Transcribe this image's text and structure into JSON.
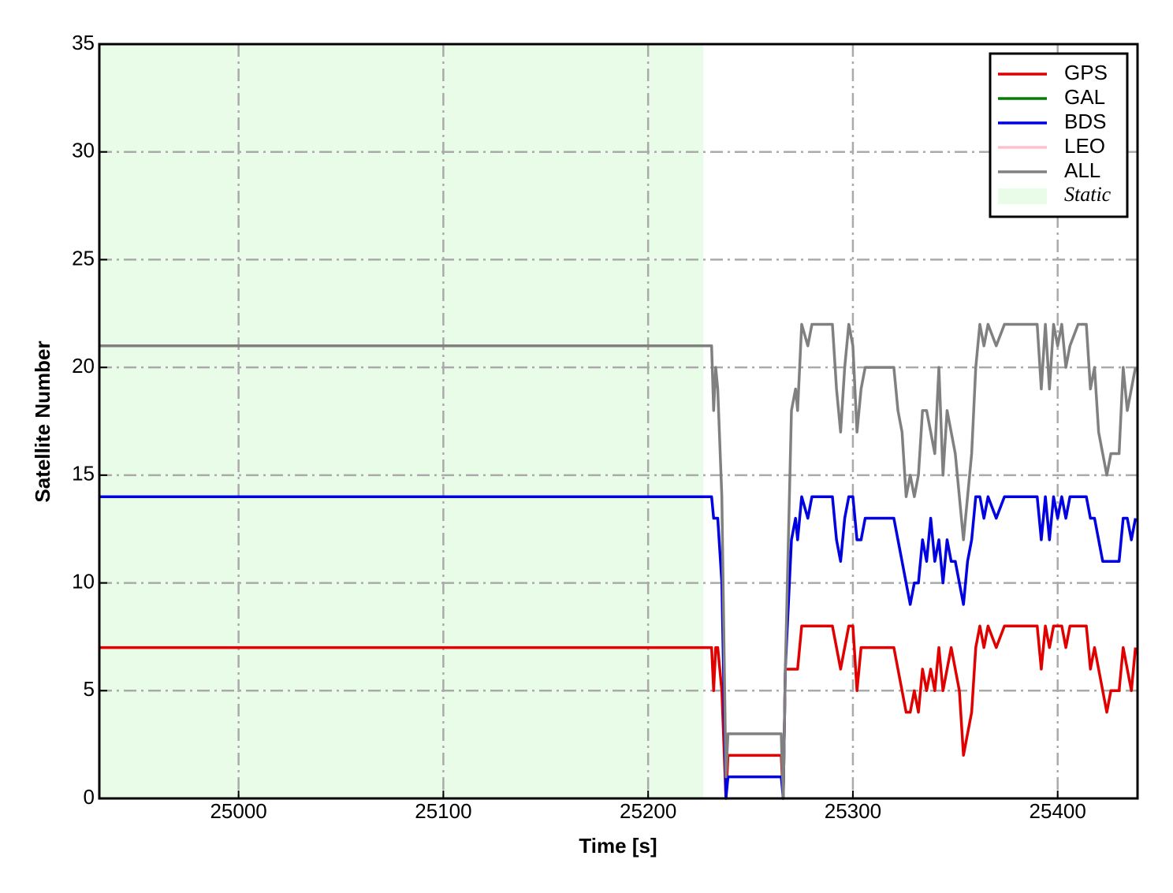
{
  "chart_data": {
    "type": "line",
    "xlabel": "Time [s]",
    "ylabel": "Satellite Number",
    "x": [
      24932,
      25231,
      25232,
      25233,
      25234,
      25236,
      25238,
      25239,
      25265,
      25266,
      25267,
      25270,
      25272,
      25273,
      25275,
      25278,
      25280,
      25290,
      25292,
      25294,
      25296,
      25298,
      25300,
      25302,
      25304,
      25306,
      25320,
      25322,
      25324,
      25326,
      25328,
      25330,
      25332,
      25334,
      25336,
      25338,
      25340,
      25342,
      25344,
      25346,
      25348,
      25350,
      25352,
      25354,
      25356,
      25358,
      25360,
      25362,
      25364,
      25366,
      25370,
      25374,
      25390,
      25392,
      25394,
      25396,
      25398,
      25400,
      25402,
      25404,
      25406,
      25410,
      25414,
      25416,
      25418,
      25420,
      25422,
      25424,
      25426,
      25430,
      25432,
      25434,
      25436,
      25438
    ],
    "series": [
      {
        "name": "GPS",
        "color": "#e00000",
        "values": [
          7,
          7,
          5,
          7,
          7,
          5,
          0,
          2,
          2,
          0,
          6,
          6,
          6,
          6,
          8,
          8,
          8,
          8,
          7,
          6,
          7,
          8,
          8,
          5,
          7,
          7,
          7,
          6,
          5,
          4,
          4,
          5,
          4,
          6,
          5,
          6,
          5,
          7,
          5,
          6,
          7,
          6,
          5,
          2,
          3,
          4,
          7,
          8,
          7,
          8,
          7,
          8,
          8,
          6,
          8,
          7,
          8,
          8,
          8,
          7,
          8,
          8,
          8,
          6,
          7,
          6,
          5,
          4,
          5,
          5,
          7,
          6,
          5,
          7
        ]
      },
      {
        "name": "GAL",
        "color": "#007f00",
        "values": [
          null,
          null,
          null,
          null,
          null,
          null,
          null,
          null,
          null,
          null,
          null,
          null,
          null,
          null,
          null,
          null,
          null,
          null,
          null,
          null,
          null,
          null,
          null,
          null,
          null,
          null,
          null,
          null,
          null,
          null,
          null,
          null,
          null,
          null,
          null,
          null,
          null,
          null,
          null,
          null,
          null,
          null,
          null,
          null,
          null,
          null,
          null,
          null,
          null,
          null,
          null,
          null,
          null,
          null,
          null,
          null,
          null,
          null,
          null,
          null,
          null,
          null,
          null,
          null,
          null,
          null,
          null,
          null,
          null,
          null,
          null,
          null,
          null,
          null
        ]
      },
      {
        "name": "BDS",
        "color": "#0000e0",
        "values": [
          14,
          14,
          13,
          13,
          13,
          10,
          0,
          1,
          1,
          0,
          6,
          12,
          13,
          12,
          14,
          13,
          14,
          14,
          12,
          11,
          13,
          14,
          14,
          12,
          12,
          13,
          13,
          12,
          11,
          10,
          9,
          10,
          10,
          12,
          11,
          13,
          11,
          12,
          10,
          12,
          11,
          11,
          10,
          9,
          11,
          12,
          14,
          14,
          13,
          14,
          13,
          14,
          14,
          12,
          14,
          12,
          14,
          13,
          14,
          13,
          14,
          14,
          14,
          13,
          13,
          12,
          11,
          11,
          11,
          11,
          13,
          13,
          12,
          13
        ]
      },
      {
        "name": "LEO",
        "color": "#ffc0cb",
        "values": [
          null,
          null,
          null,
          null,
          null,
          null,
          null,
          null,
          null,
          null,
          null,
          null,
          null,
          null,
          null,
          null,
          null,
          null,
          null,
          null,
          null,
          null,
          null,
          null,
          null,
          null,
          null,
          null,
          null,
          null,
          null,
          null,
          null,
          null,
          null,
          null,
          null,
          null,
          null,
          null,
          null,
          null,
          null,
          null,
          null,
          null,
          null,
          null,
          null,
          null,
          null,
          null,
          null,
          null,
          null,
          null,
          null,
          null,
          null,
          null,
          null,
          null,
          null,
          null,
          null,
          null,
          null,
          null,
          null,
          null,
          null,
          null,
          null,
          null
        ]
      },
      {
        "name": "ALL",
        "color": "#808080",
        "values": [
          21,
          21,
          18,
          20,
          19,
          14,
          1,
          3,
          3,
          0,
          6,
          18,
          19,
          18,
          22,
          21,
          22,
          22,
          19,
          17,
          20,
          22,
          21,
          17,
          19,
          20,
          20,
          18,
          17,
          14,
          15,
          14,
          15,
          18,
          18,
          17,
          16,
          20,
          15,
          18,
          17,
          16,
          14,
          12,
          14,
          16,
          20,
          22,
          21,
          22,
          21,
          22,
          22,
          19,
          22,
          19,
          22,
          21,
          22,
          20,
          21,
          22,
          22,
          19,
          20,
          17,
          16,
          15,
          16,
          16,
          20,
          18,
          19,
          20
        ]
      }
    ],
    "shaded_region": {
      "label": "Static",
      "x": [
        24932,
        25227
      ],
      "color": "#e8fce8"
    },
    "xlim": [
      24932,
      25439
    ],
    "xticks": [
      25000,
      25100,
      25200,
      25300,
      25400
    ],
    "ylim": [
      0,
      35
    ],
    "yticks": [
      0,
      5,
      10,
      15,
      20,
      25,
      30,
      35
    ],
    "grid": true,
    "legend": "upper right"
  }
}
